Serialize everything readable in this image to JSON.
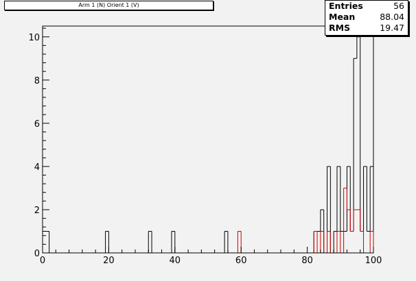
{
  "title": "Arm 1 (N) Orient 1 (V)",
  "stats": {
    "entries_label": "Entries",
    "entries_value": "56",
    "mean_label": "Mean",
    "mean_value": "88.04",
    "rms_label": "RMS",
    "rms_value": "19.47"
  },
  "colors": {
    "background": "#f2f2f2",
    "series1": "#000000",
    "series2": "#cc0000"
  },
  "chart_data": {
    "type": "histogram",
    "title": "Arm 1 (N) Orient 1 (V)",
    "xlabel": "",
    "ylabel": "",
    "xlim": [
      0,
      100
    ],
    "ylim": [
      0,
      10.5
    ],
    "bin_width": 1,
    "x_ticks": [
      0,
      20,
      40,
      60,
      80,
      100
    ],
    "y_ticks": [
      0,
      2,
      4,
      6,
      8,
      10
    ],
    "grid": false,
    "series": [
      {
        "color": "#000000",
        "bins": [
          {
            "x": 0,
            "y": 1
          },
          {
            "x": 1,
            "y": 1
          },
          {
            "x": 19,
            "y": 1
          },
          {
            "x": 32,
            "y": 1
          },
          {
            "x": 39,
            "y": 1
          },
          {
            "x": 55,
            "y": 1
          },
          {
            "x": 82,
            "y": 1
          },
          {
            "x": 83,
            "y": 1
          },
          {
            "x": 84,
            "y": 2
          },
          {
            "x": 86,
            "y": 4
          },
          {
            "x": 88,
            "y": 1
          },
          {
            "x": 89,
            "y": 4
          },
          {
            "x": 90,
            "y": 1
          },
          {
            "x": 91,
            "y": 1
          },
          {
            "x": 92,
            "y": 4
          },
          {
            "x": 93,
            "y": 1
          },
          {
            "x": 94,
            "y": 9
          },
          {
            "x": 95,
            "y": 10
          },
          {
            "x": 96,
            "y": 1
          },
          {
            "x": 97,
            "y": 4
          },
          {
            "x": 98,
            "y": 1
          },
          {
            "x": 99,
            "y": 4
          }
        ]
      },
      {
        "color": "#cc0000",
        "bins": [
          {
            "x": 59,
            "y": 1
          },
          {
            "x": 82,
            "y": 1
          },
          {
            "x": 84,
            "y": 1
          },
          {
            "x": 86,
            "y": 1
          },
          {
            "x": 89,
            "y": 1
          },
          {
            "x": 91,
            "y": 3
          },
          {
            "x": 92,
            "y": 2
          },
          {
            "x": 93,
            "y": 1
          },
          {
            "x": 94,
            "y": 2
          },
          {
            "x": 95,
            "y": 2
          },
          {
            "x": 96,
            "y": 1
          },
          {
            "x": 99,
            "y": 1
          }
        ]
      }
    ]
  }
}
